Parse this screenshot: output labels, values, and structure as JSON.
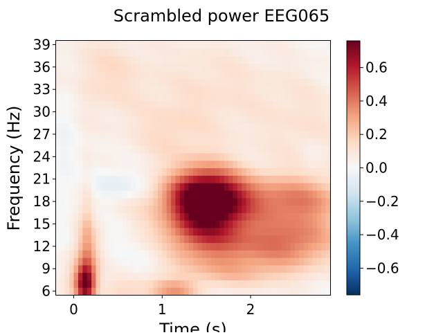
{
  "chart_data": {
    "type": "heatmap",
    "title": "Scrambled power EEG065",
    "xlabel": "Time (s)",
    "ylabel": "Frequency (Hz)",
    "xlim": [
      -0.2,
      2.9
    ],
    "ylim": [
      5.5,
      39.5
    ],
    "x_ticks": [
      0,
      1,
      2
    ],
    "y_ticks": [
      6,
      9,
      12,
      15,
      18,
      21,
      24,
      27,
      30,
      33,
      36,
      39
    ],
    "colormap": "RdBu_r",
    "color_range": [
      -0.76,
      0.76
    ],
    "colorbar_ticks": [
      -0.6,
      -0.4,
      -0.2,
      0.0,
      0.2,
      0.4,
      0.6
    ],
    "colorbar_tick_labels": [
      "−0.6",
      "−0.4",
      "−0.2",
      "0.0",
      "0.2",
      "0.4",
      "0.6"
    ],
    "blobs": [
      {
        "t": 1.5,
        "f": 18,
        "st": 0.28,
        "sf": 3.2,
        "a": 0.78
      },
      {
        "t": 1.85,
        "f": 18.5,
        "st": 0.75,
        "sf": 2.2,
        "a": 0.28
      },
      {
        "t": 2.6,
        "f": 17.5,
        "st": 0.35,
        "sf": 2.5,
        "a": 0.18
      },
      {
        "t": 1.75,
        "f": 12.5,
        "st": 0.65,
        "sf": 2.5,
        "a": 0.32
      },
      {
        "t": 2.55,
        "f": 12.5,
        "st": 0.35,
        "sf": 2.2,
        "a": 0.2
      },
      {
        "t": 0.13,
        "f": 7,
        "st": 0.08,
        "sf": 1.8,
        "a": 0.68
      },
      {
        "t": 0.15,
        "f": 11,
        "st": 0.1,
        "sf": 2.8,
        "a": 0.25
      },
      {
        "t": 1.12,
        "f": 6,
        "st": 0.2,
        "sf": 1.1,
        "a": 0.28
      },
      {
        "t": 0.55,
        "f": 6.2,
        "st": 0.2,
        "sf": 1.0,
        "a": 0.12
      },
      {
        "t": 1.85,
        "f": 8.5,
        "st": 0.5,
        "sf": 1.5,
        "a": 0.15
      },
      {
        "t": 0.55,
        "f": 20,
        "st": 0.25,
        "sf": 1.5,
        "a": -0.14
      },
      {
        "t": 0.85,
        "f": 11,
        "st": 0.18,
        "sf": 1.5,
        "a": -0.1
      },
      {
        "t": 0.5,
        "f": 13,
        "st": 0.2,
        "sf": 1.8,
        "a": -0.06
      },
      {
        "t": -0.12,
        "f": 24,
        "st": 0.08,
        "sf": 8,
        "a": -0.05
      },
      {
        "t": -0.05,
        "f": 8,
        "st": 0.07,
        "sf": 2,
        "a": 0.08
      },
      {
        "t": 0.35,
        "f": 35,
        "st": 0.35,
        "sf": 4,
        "a": 0.12
      },
      {
        "t": 1.6,
        "f": 33,
        "st": 0.5,
        "sf": 5,
        "a": 0.1
      },
      {
        "t": 2.6,
        "f": 28,
        "st": 0.35,
        "sf": 5,
        "a": 0.09
      },
      {
        "t": 1.05,
        "f": 27,
        "st": 0.3,
        "sf": 3,
        "a": 0.1
      },
      {
        "t": 0.15,
        "f": 16,
        "st": 0.05,
        "sf": 5,
        "a": 0.1
      },
      {
        "t": 2.7,
        "f": 24,
        "st": 0.1,
        "sf": 1.5,
        "a": -0.05
      },
      {
        "t": 0.0,
        "f": 33,
        "st": 0.08,
        "sf": 3,
        "a": -0.04
      }
    ],
    "baseline": 0.02
  }
}
